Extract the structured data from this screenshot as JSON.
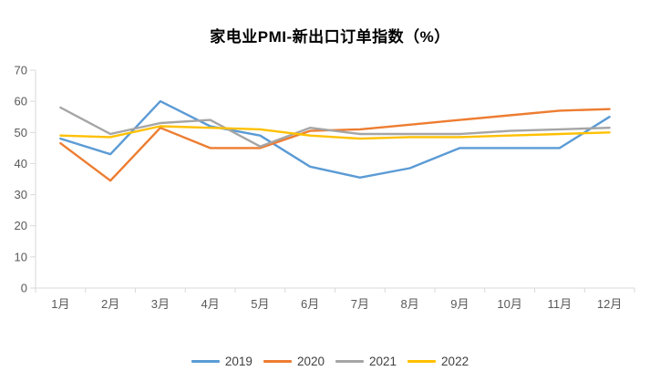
{
  "title": "家电业PMI-新出口订单指数（%）",
  "colors": {
    "background": "#FFFFFF",
    "axis_line": "#D9D9D9",
    "axis_text": "#595959",
    "legend_text": "#404040",
    "title_text": "#000000"
  },
  "chart_data": {
    "type": "line",
    "title": "家电业PMI-新出口订单指数（%）",
    "xlabel": "",
    "ylabel": "",
    "ylim": [
      0,
      70
    ],
    "ytick_step": 10,
    "ytick_labels": [
      "0",
      "10",
      "20",
      "30",
      "40",
      "50",
      "60",
      "70"
    ],
    "grid": false,
    "legend_position": "bottom",
    "categories": [
      "1月",
      "2月",
      "3月",
      "4月",
      "5月",
      "6月",
      "7月",
      "8月",
      "9月",
      "10月",
      "11月",
      "12月"
    ],
    "series": [
      {
        "name": "2019",
        "color": "#5B9BD5",
        "values": [
          48,
          43,
          60,
          52,
          49,
          39,
          35.5,
          38.5,
          45,
          45,
          45,
          55
        ]
      },
      {
        "name": "2020",
        "color": "#ED7D31",
        "values": [
          46.5,
          34.5,
          51.5,
          45,
          45,
          50.5,
          51,
          52.5,
          54,
          55.5,
          57,
          57.5
        ]
      },
      {
        "name": "2021",
        "color": "#A5A5A5",
        "values": [
          58,
          49.5,
          53,
          54,
          45.5,
          51.5,
          49.5,
          49.5,
          49.5,
          50.5,
          51,
          51.5
        ]
      },
      {
        "name": "2022",
        "color": "#FFC000",
        "values": [
          49,
          48.5,
          52,
          51.5,
          51,
          49,
          48,
          48.5,
          48.5,
          49,
          49.5,
          50
        ]
      }
    ]
  }
}
